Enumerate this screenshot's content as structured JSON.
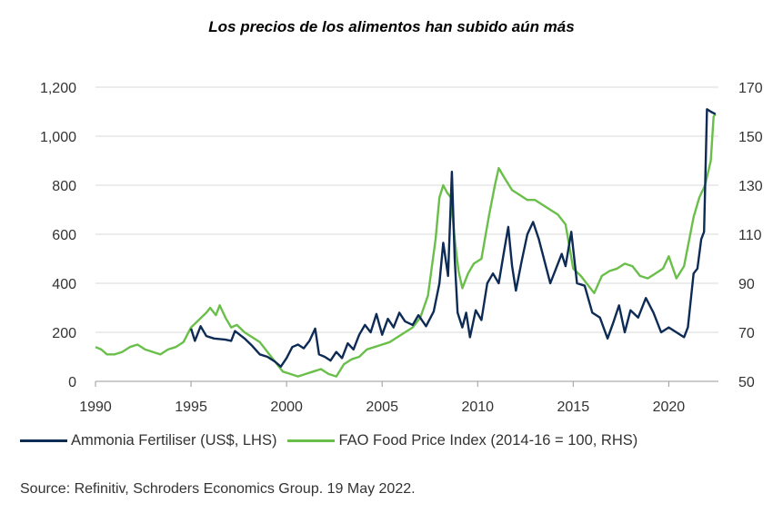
{
  "chart_data": {
    "type": "line",
    "title": "Los precios de los alimentos han subido aún más",
    "x_ticks": [
      "1990",
      "1995",
      "2000",
      "2005",
      "2010",
      "2015",
      "2020"
    ],
    "x_range": [
      1990,
      2022.6
    ],
    "y_left": {
      "ticks": [
        "0",
        "200",
        "400",
        "600",
        "800",
        "1,000",
        "1,200"
      ],
      "range": [
        0,
        1200
      ]
    },
    "y_right": {
      "ticks": [
        "50",
        "70",
        "90",
        "110",
        "130",
        "150",
        "170"
      ],
      "range": [
        50,
        170
      ]
    },
    "grid": true,
    "legend_position": "bottom",
    "series": [
      {
        "name": "Ammonia Fertiliser (US$, LHS)",
        "axis": "left",
        "color": "#0d2b55",
        "points": [
          [
            1995.0,
            215
          ],
          [
            1995.2,
            165
          ],
          [
            1995.5,
            225
          ],
          [
            1995.8,
            185
          ],
          [
            1996.2,
            175
          ],
          [
            1996.8,
            170
          ],
          [
            1997.1,
            165
          ],
          [
            1997.3,
            205
          ],
          [
            1997.8,
            175
          ],
          [
            1998.2,
            145
          ],
          [
            1998.6,
            110
          ],
          [
            1999.0,
            100
          ],
          [
            1999.4,
            80
          ],
          [
            1999.7,
            60
          ],
          [
            2000.0,
            95
          ],
          [
            2000.3,
            140
          ],
          [
            2000.6,
            150
          ],
          [
            2000.9,
            135
          ],
          [
            2001.2,
            165
          ],
          [
            2001.5,
            215
          ],
          [
            2001.7,
            110
          ],
          [
            2002.0,
            100
          ],
          [
            2002.3,
            85
          ],
          [
            2002.6,
            120
          ],
          [
            2002.9,
            95
          ],
          [
            2003.2,
            155
          ],
          [
            2003.5,
            130
          ],
          [
            2003.8,
            190
          ],
          [
            2004.1,
            230
          ],
          [
            2004.4,
            200
          ],
          [
            2004.7,
            275
          ],
          [
            2005.0,
            190
          ],
          [
            2005.3,
            255
          ],
          [
            2005.6,
            220
          ],
          [
            2005.9,
            280
          ],
          [
            2006.2,
            245
          ],
          [
            2006.6,
            230
          ],
          [
            2006.9,
            270
          ],
          [
            2007.3,
            225
          ],
          [
            2007.7,
            285
          ],
          [
            2008.0,
            400
          ],
          [
            2008.2,
            565
          ],
          [
            2008.45,
            430
          ],
          [
            2008.65,
            855
          ],
          [
            2008.8,
            500
          ],
          [
            2008.95,
            280
          ],
          [
            2009.2,
            220
          ],
          [
            2009.4,
            280
          ],
          [
            2009.6,
            180
          ],
          [
            2009.9,
            290
          ],
          [
            2010.2,
            250
          ],
          [
            2010.5,
            400
          ],
          [
            2010.8,
            440
          ],
          [
            2011.1,
            400
          ],
          [
            2011.4,
            540
          ],
          [
            2011.6,
            630
          ],
          [
            2011.8,
            470
          ],
          [
            2012.0,
            370
          ],
          [
            2012.3,
            490
          ],
          [
            2012.6,
            600
          ],
          [
            2012.9,
            650
          ],
          [
            2013.2,
            580
          ],
          [
            2013.5,
            490
          ],
          [
            2013.8,
            400
          ],
          [
            2014.1,
            460
          ],
          [
            2014.4,
            520
          ],
          [
            2014.6,
            470
          ],
          [
            2014.9,
            610
          ],
          [
            2015.2,
            400
          ],
          [
            2015.6,
            390
          ],
          [
            2016.0,
            280
          ],
          [
            2016.4,
            260
          ],
          [
            2016.8,
            175
          ],
          [
            2017.1,
            240
          ],
          [
            2017.4,
            310
          ],
          [
            2017.7,
            200
          ],
          [
            2018.0,
            290
          ],
          [
            2018.4,
            260
          ],
          [
            2018.8,
            340
          ],
          [
            2019.2,
            280
          ],
          [
            2019.6,
            200
          ],
          [
            2020.0,
            220
          ],
          [
            2020.4,
            200
          ],
          [
            2020.8,
            180
          ],
          [
            2021.0,
            220
          ],
          [
            2021.3,
            440
          ],
          [
            2021.5,
            460
          ],
          [
            2021.7,
            580
          ],
          [
            2021.85,
            610
          ],
          [
            2022.0,
            1110
          ],
          [
            2022.2,
            1100
          ],
          [
            2022.45,
            1090
          ]
        ]
      },
      {
        "name": "FAO Food Price Index (2014-16 = 100, RHS)",
        "axis": "right",
        "color": "#6abf4b",
        "points": [
          [
            1990.0,
            64
          ],
          [
            1990.3,
            63
          ],
          [
            1990.6,
            61
          ],
          [
            1991.0,
            61
          ],
          [
            1991.4,
            62
          ],
          [
            1991.8,
            64
          ],
          [
            1992.2,
            65
          ],
          [
            1992.6,
            63
          ],
          [
            1993.0,
            62
          ],
          [
            1993.4,
            61
          ],
          [
            1993.8,
            63
          ],
          [
            1994.2,
            64
          ],
          [
            1994.6,
            66
          ],
          [
            1995.0,
            72
          ],
          [
            1995.4,
            75
          ],
          [
            1995.8,
            78
          ],
          [
            1996.0,
            80
          ],
          [
            1996.3,
            77
          ],
          [
            1996.5,
            81
          ],
          [
            1996.8,
            76
          ],
          [
            1997.1,
            72
          ],
          [
            1997.4,
            73
          ],
          [
            1997.8,
            70
          ],
          [
            1998.2,
            68
          ],
          [
            1998.6,
            66
          ],
          [
            1999.0,
            62
          ],
          [
            1999.4,
            58
          ],
          [
            1999.8,
            54
          ],
          [
            2000.2,
            53
          ],
          [
            2000.6,
            52
          ],
          [
            2001.0,
            53
          ],
          [
            2001.4,
            54
          ],
          [
            2001.8,
            55
          ],
          [
            2002.2,
            53
          ],
          [
            2002.6,
            52
          ],
          [
            2003.0,
            57
          ],
          [
            2003.4,
            59
          ],
          [
            2003.8,
            60
          ],
          [
            2004.2,
            63
          ],
          [
            2004.6,
            64
          ],
          [
            2005.0,
            65
          ],
          [
            2005.4,
            66
          ],
          [
            2005.8,
            68
          ],
          [
            2006.2,
            70
          ],
          [
            2006.6,
            72
          ],
          [
            2007.0,
            76
          ],
          [
            2007.4,
            85
          ],
          [
            2007.8,
            108
          ],
          [
            2008.0,
            125
          ],
          [
            2008.2,
            130
          ],
          [
            2008.4,
            127
          ],
          [
            2008.6,
            125
          ],
          [
            2008.8,
            108
          ],
          [
            2009.0,
            95
          ],
          [
            2009.2,
            88
          ],
          [
            2009.5,
            94
          ],
          [
            2009.8,
            98
          ],
          [
            2010.2,
            100
          ],
          [
            2010.6,
            118
          ],
          [
            2010.9,
            130
          ],
          [
            2011.1,
            137
          ],
          [
            2011.4,
            133
          ],
          [
            2011.8,
            128
          ],
          [
            2012.2,
            126
          ],
          [
            2012.6,
            124
          ],
          [
            2013.0,
            124
          ],
          [
            2013.4,
            122
          ],
          [
            2013.8,
            120
          ],
          [
            2014.2,
            118
          ],
          [
            2014.6,
            114
          ],
          [
            2015.0,
            96
          ],
          [
            2015.4,
            93
          ],
          [
            2015.8,
            89
          ],
          [
            2016.1,
            86
          ],
          [
            2016.5,
            93
          ],
          [
            2016.9,
            95
          ],
          [
            2017.3,
            96
          ],
          [
            2017.7,
            98
          ],
          [
            2018.1,
            97
          ],
          [
            2018.5,
            93
          ],
          [
            2018.9,
            92
          ],
          [
            2019.3,
            94
          ],
          [
            2019.7,
            96
          ],
          [
            2020.0,
            101
          ],
          [
            2020.4,
            92
          ],
          [
            2020.8,
            97
          ],
          [
            2021.0,
            105
          ],
          [
            2021.3,
            117
          ],
          [
            2021.6,
            125
          ],
          [
            2021.9,
            130
          ],
          [
            2022.2,
            140
          ],
          [
            2022.35,
            158
          ],
          [
            2022.45,
            159
          ]
        ]
      }
    ]
  },
  "source": "Source: Refinitiv, Schroders Economics Group. 19 May 2022."
}
